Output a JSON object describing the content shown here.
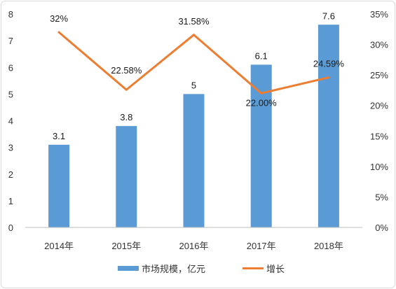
{
  "chart_data": {
    "type": "bar",
    "categories": [
      "2014年",
      "2015年",
      "2016年",
      "2017年",
      "2018年"
    ],
    "series": [
      {
        "name": "市场规模，亿元",
        "type": "bar",
        "axis": "left",
        "values": [
          3.1,
          3.8,
          5,
          6.1,
          7.6
        ],
        "labels": [
          "3.1",
          "3.8",
          "5",
          "6.1",
          "7.6"
        ],
        "color": "#5b9bd5"
      },
      {
        "name": "增长",
        "type": "line",
        "axis": "right",
        "values": [
          0.32,
          0.2258,
          0.3158,
          0.22,
          0.2459
        ],
        "labels": [
          "32%",
          "22.58%",
          "31.58%",
          "22.00%",
          "24.59%"
        ],
        "color": "#ed7d31"
      }
    ],
    "y_left": {
      "ylim": [
        0,
        8
      ],
      "ticks": [
        "0",
        "1",
        "2",
        "3",
        "4",
        "5",
        "6",
        "7",
        "8"
      ]
    },
    "y_right": {
      "ylim": [
        0,
        0.35
      ],
      "ticks": [
        "0%",
        "5%",
        "10%",
        "15%",
        "20%",
        "25%",
        "30%",
        "35%"
      ]
    },
    "grid": false,
    "legend_position": "bottom",
    "title": "",
    "xlabel": "",
    "ylabel": ""
  }
}
